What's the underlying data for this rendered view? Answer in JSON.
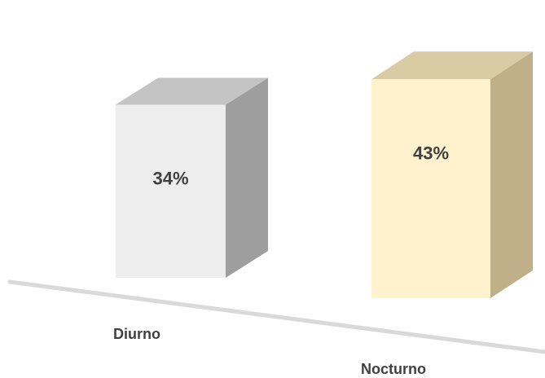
{
  "chart_data": {
    "type": "bar",
    "categories": [
      "Diurno",
      "Nocturno"
    ],
    "values": [
      34,
      43
    ],
    "data_labels": [
      "34%",
      "43%"
    ],
    "ylim": [
      0,
      45
    ],
    "grid": false,
    "legend": "none",
    "colors": {
      "bar_front": [
        "#ededed",
        "#fff2cc"
      ],
      "bar_side": [
        "#9e9e9e",
        "#bfb08a"
      ],
      "bar_top": [
        "#c4c4c4",
        "#d9cca5"
      ],
      "floor": "#d9d9d9",
      "text": "#404040"
    }
  }
}
